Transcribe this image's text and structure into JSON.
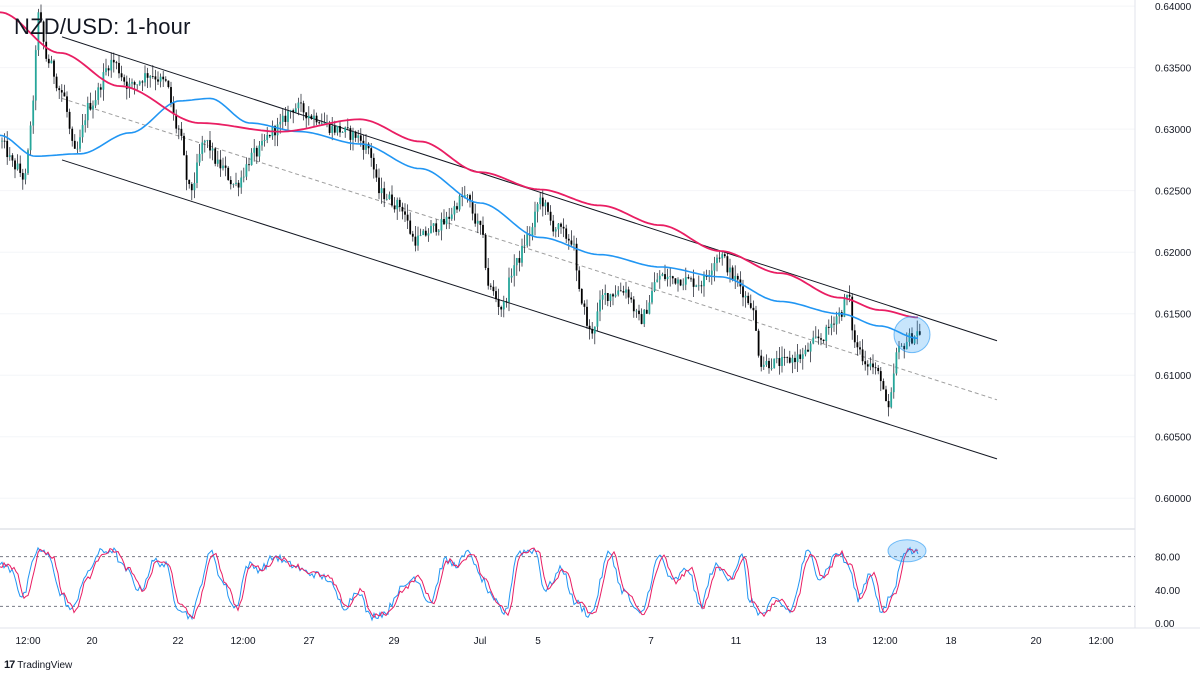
{
  "chart_data": {
    "type": "candlestick",
    "title": "NZD/USD: 1-hour",
    "price_ylim": [
      0.5975,
      0.6405
    ],
    "price_ticks": [
      "0.64000",
      "0.63500",
      "0.63000",
      "0.62500",
      "0.62000",
      "0.61500",
      "0.61000",
      "0.60500",
      "0.60000"
    ],
    "stoch_ylim": [
      0,
      100
    ],
    "stoch_ticks": [
      "80.00",
      "40.00",
      "0.00"
    ],
    "stoch_levels": [
      80,
      20
    ],
    "x_ticks": [
      "12:00",
      "20",
      "22",
      "12:00",
      "27",
      "29",
      "Jul",
      "5",
      "7",
      "11",
      "13",
      "12:00",
      "18",
      "20",
      "12:00"
    ],
    "x_range": [
      0,
      1135
    ],
    "x_tick_positions": [
      28,
      92,
      178,
      243,
      309,
      394,
      480,
      538,
      651,
      736,
      821,
      885,
      951,
      1036,
      1101
    ],
    "channel": {
      "upper": [
        [
          62,
          0.6375
        ],
        [
          997,
          0.6128
        ]
      ],
      "lower": [
        [
          62,
          0.6275
        ],
        [
          997,
          0.6032
        ]
      ],
      "mid": [
        [
          62,
          0.6325
        ],
        [
          997,
          0.608
        ]
      ]
    },
    "ma_slow_anchors": [
      [
        0,
        0.6395
      ],
      [
        60,
        0.6362
      ],
      [
        120,
        0.6335
      ],
      [
        200,
        0.6305
      ],
      [
        280,
        0.6298
      ],
      [
        360,
        0.6308
      ],
      [
        420,
        0.629
      ],
      [
        480,
        0.6265
      ],
      [
        540,
        0.6251
      ],
      [
        600,
        0.6238
      ],
      [
        660,
        0.6222
      ],
      [
        720,
        0.6201
      ],
      [
        780,
        0.6183
      ],
      [
        840,
        0.6163
      ],
      [
        880,
        0.6153
      ],
      [
        918,
        0.6147
      ]
    ],
    "ma_fast_anchors": [
      [
        0,
        0.6295
      ],
      [
        35,
        0.6278
      ],
      [
        80,
        0.628
      ],
      [
        130,
        0.6297
      ],
      [
        180,
        0.6323
      ],
      [
        210,
        0.6325
      ],
      [
        250,
        0.6305
      ],
      [
        300,
        0.6298
      ],
      [
        360,
        0.6288
      ],
      [
        420,
        0.6268
      ],
      [
        480,
        0.624
      ],
      [
        540,
        0.6212
      ],
      [
        600,
        0.6198
      ],
      [
        660,
        0.6188
      ],
      [
        720,
        0.618
      ],
      [
        780,
        0.616
      ],
      [
        840,
        0.615
      ],
      [
        880,
        0.614
      ],
      [
        918,
        0.613
      ]
    ],
    "price_anchors": [
      [
        0,
        0.629
      ],
      [
        15,
        0.627
      ],
      [
        25,
        0.626
      ],
      [
        32,
        0.631
      ],
      [
        38,
        0.6392
      ],
      [
        48,
        0.6355
      ],
      [
        62,
        0.633
      ],
      [
        75,
        0.628
      ],
      [
        90,
        0.632
      ],
      [
        112,
        0.6355
      ],
      [
        130,
        0.6335
      ],
      [
        150,
        0.6345
      ],
      [
        165,
        0.6338
      ],
      [
        178,
        0.63
      ],
      [
        190,
        0.625
      ],
      [
        205,
        0.629
      ],
      [
        220,
        0.627
      ],
      [
        235,
        0.6255
      ],
      [
        255,
        0.628
      ],
      [
        275,
        0.63
      ],
      [
        295,
        0.6318
      ],
      [
        315,
        0.631
      ],
      [
        335,
        0.63
      ],
      [
        355,
        0.6295
      ],
      [
        368,
        0.6285
      ],
      [
        380,
        0.6248
      ],
      [
        400,
        0.6238
      ],
      [
        415,
        0.621
      ],
      [
        440,
        0.6222
      ],
      [
        465,
        0.6245
      ],
      [
        480,
        0.622
      ],
      [
        490,
        0.617
      ],
      [
        502,
        0.6155
      ],
      [
        515,
        0.619
      ],
      [
        530,
        0.6215
      ],
      [
        540,
        0.6243
      ],
      [
        555,
        0.622
      ],
      [
        572,
        0.621
      ],
      [
        580,
        0.6165
      ],
      [
        590,
        0.6135
      ],
      [
        605,
        0.6165
      ],
      [
        625,
        0.617
      ],
      [
        640,
        0.6145
      ],
      [
        660,
        0.618
      ],
      [
        680,
        0.6178
      ],
      [
        700,
        0.6175
      ],
      [
        720,
        0.6198
      ],
      [
        735,
        0.6178
      ],
      [
        750,
        0.616
      ],
      [
        762,
        0.611
      ],
      [
        780,
        0.611
      ],
      [
        800,
        0.6115
      ],
      [
        820,
        0.613
      ],
      [
        840,
        0.615
      ],
      [
        848,
        0.6165
      ],
      [
        855,
        0.6125
      ],
      [
        868,
        0.611
      ],
      [
        880,
        0.61
      ],
      [
        888,
        0.607
      ],
      [
        898,
        0.612
      ],
      [
        910,
        0.613
      ],
      [
        918,
        0.6135
      ]
    ],
    "stoch_series": [
      {
        "name": "%K",
        "color": "#2196F3"
      },
      {
        "name": "%D",
        "color": "#E91E63"
      }
    ],
    "stoch_peaks": [
      [
        0,
        70
      ],
      [
        12,
        65
      ],
      [
        22,
        30
      ],
      [
        38,
        88
      ],
      [
        50,
        80
      ],
      [
        60,
        35
      ],
      [
        72,
        15
      ],
      [
        85,
        55
      ],
      [
        100,
        85
      ],
      [
        112,
        88
      ],
      [
        125,
        65
      ],
      [
        140,
        40
      ],
      [
        155,
        75
      ],
      [
        165,
        70
      ],
      [
        178,
        20
      ],
      [
        190,
        8
      ],
      [
        212,
        85
      ],
      [
        222,
        50
      ],
      [
        235,
        18
      ],
      [
        248,
        70
      ],
      [
        260,
        65
      ],
      [
        275,
        80
      ],
      [
        290,
        70
      ],
      [
        310,
        60
      ],
      [
        325,
        55
      ],
      [
        345,
        20
      ],
      [
        358,
        40
      ],
      [
        370,
        8
      ],
      [
        385,
        12
      ],
      [
        400,
        40
      ],
      [
        415,
        55
      ],
      [
        430,
        25
      ],
      [
        445,
        75
      ],
      [
        455,
        70
      ],
      [
        470,
        85
      ],
      [
        480,
        55
      ],
      [
        495,
        25
      ],
      [
        505,
        12
      ],
      [
        518,
        85
      ],
      [
        535,
        88
      ],
      [
        545,
        40
      ],
      [
        562,
        65
      ],
      [
        575,
        25
      ],
      [
        590,
        10
      ],
      [
        610,
        85
      ],
      [
        622,
        40
      ],
      [
        640,
        10
      ],
      [
        660,
        80
      ],
      [
        672,
        50
      ],
      [
        688,
        65
      ],
      [
        700,
        20
      ],
      [
        715,
        68
      ],
      [
        730,
        55
      ],
      [
        742,
        80
      ],
      [
        750,
        25
      ],
      [
        762,
        10
      ],
      [
        775,
        28
      ],
      [
        790,
        15
      ],
      [
        808,
        85
      ],
      [
        820,
        55
      ],
      [
        838,
        85
      ],
      [
        848,
        70
      ],
      [
        858,
        30
      ],
      [
        870,
        60
      ],
      [
        882,
        12
      ],
      [
        892,
        35
      ],
      [
        905,
        88
      ],
      [
        918,
        85
      ]
    ],
    "annotations": [
      {
        "kind": "circle",
        "panel": "price",
        "x": 912,
        "y": 0.6133
      },
      {
        "kind": "ellipse",
        "panel": "stoch",
        "x": 907,
        "y": 87
      }
    ],
    "colors": {
      "up": "#26a69a",
      "down": "#000000",
      "wick": "#131722",
      "ma_slow": "#E91E63",
      "ma_fast": "#2196F3",
      "channel": "#131722",
      "mid": "#9e9e9e",
      "highlight": "#2196F3"
    }
  },
  "branding": {
    "name": "TradingView",
    "icon": "tradingview-logo-icon"
  }
}
